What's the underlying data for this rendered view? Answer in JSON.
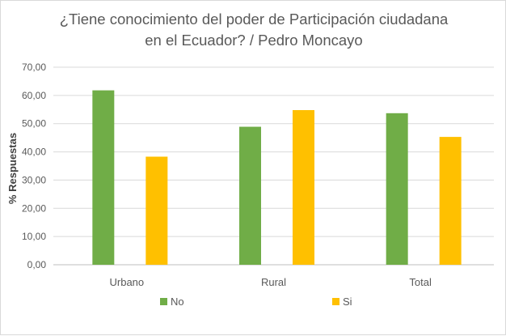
{
  "chart_data": {
    "type": "bar",
    "title_lines": [
      "¿Tiene conocimiento del poder de Participación ciudadana",
      "en el Ecuador?  / Pedro Moncayo"
    ],
    "xlabel": "",
    "ylabel": "% Respuestas",
    "ylim": [
      0,
      70
    ],
    "yticks": [
      "0,00",
      "10,00",
      "20,00",
      "30,00",
      "40,00",
      "50,00",
      "60,00",
      "70,00"
    ],
    "categories": [
      "Urbano",
      "Rural",
      "Total"
    ],
    "series": [
      {
        "name": "No",
        "color": "#70ad47",
        "values": [
          61.8,
          48.9,
          53.7
        ]
      },
      {
        "name": "Si",
        "color": "#ffc000",
        "values": [
          38.3,
          54.8,
          45.3
        ]
      }
    ],
    "grid": true,
    "legend_position": "bottom"
  }
}
